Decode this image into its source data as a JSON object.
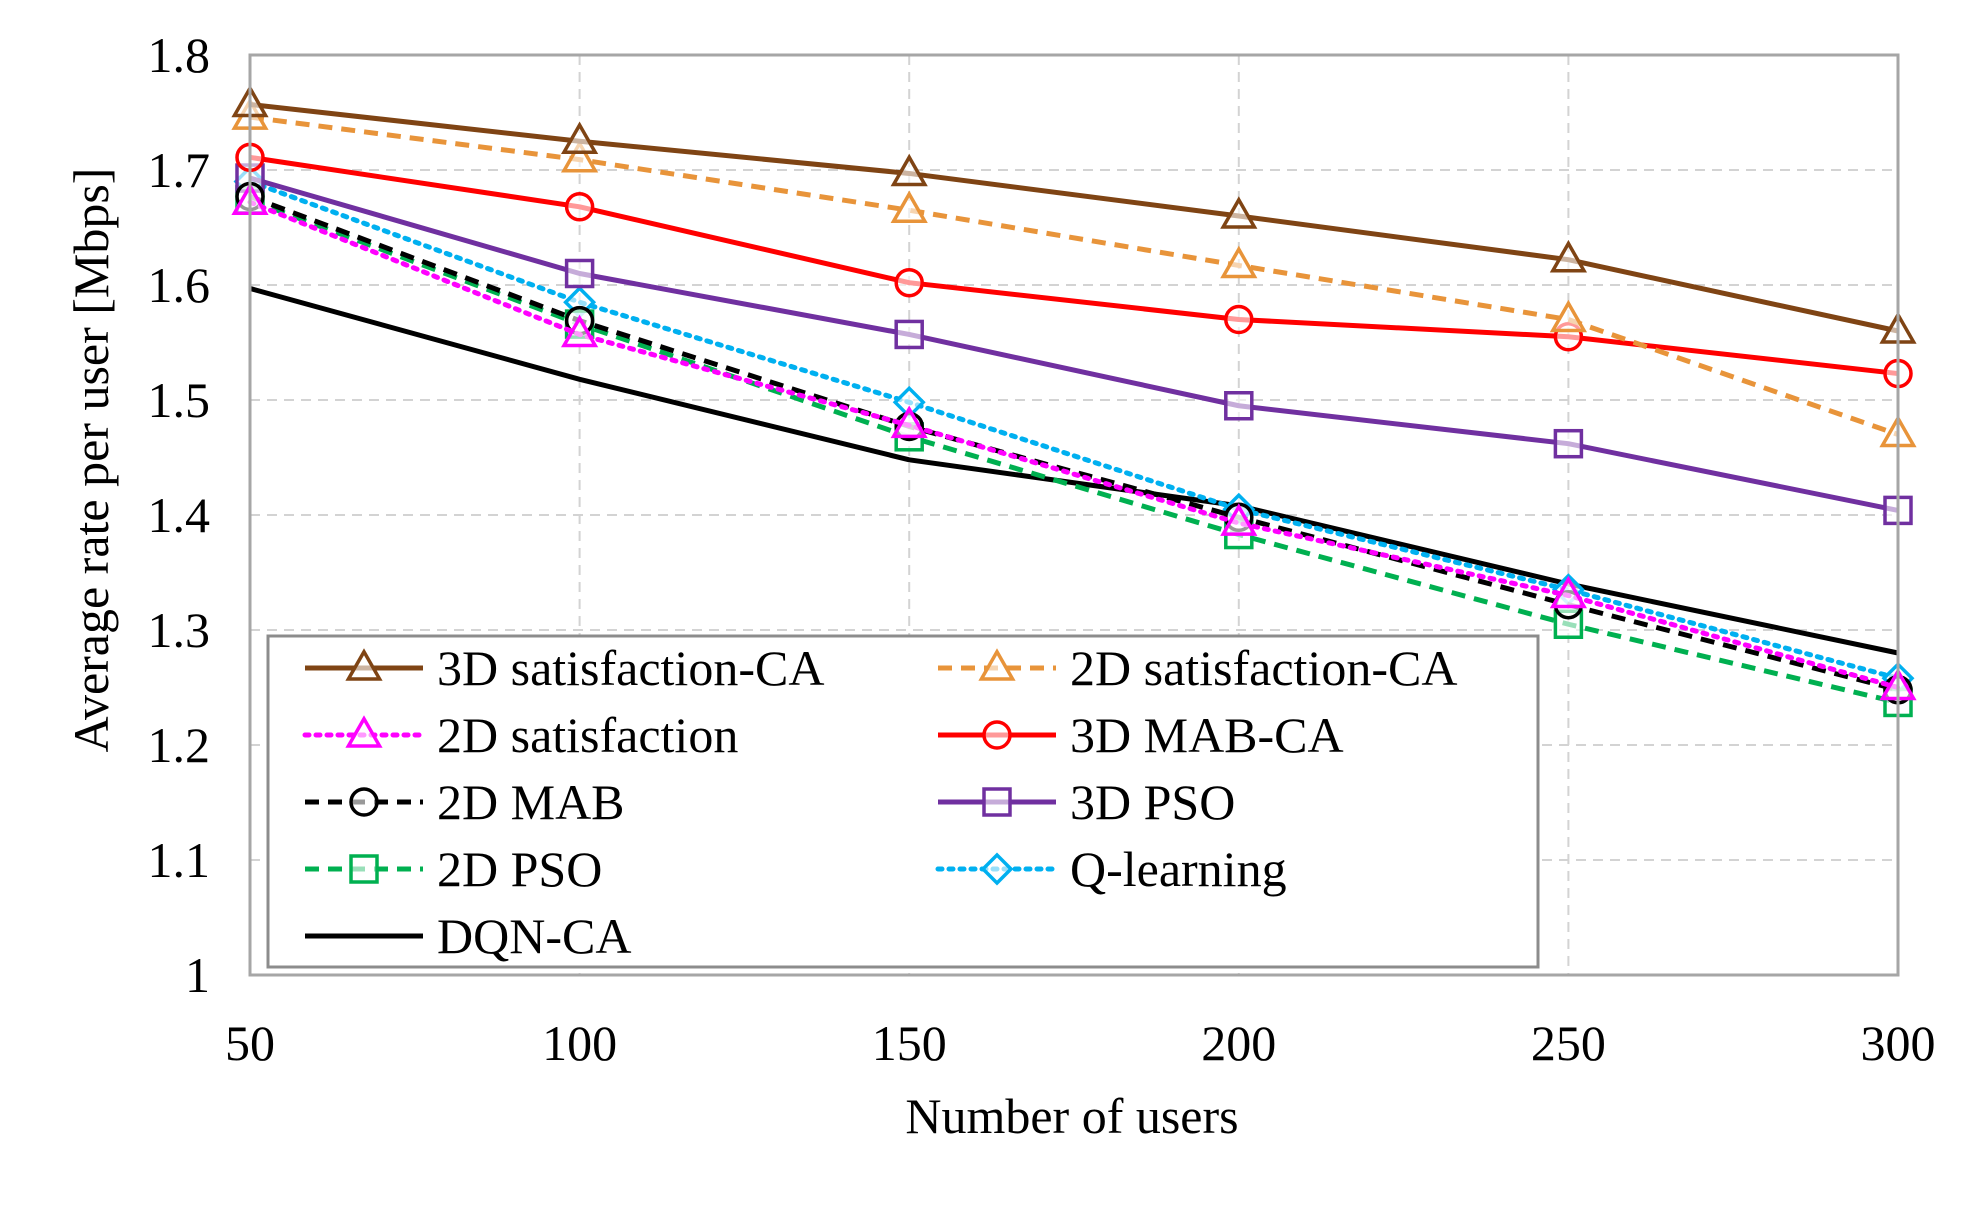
{
  "chart_data": {
    "type": "line",
    "title": "",
    "xlabel": "Number of users",
    "ylabel": "Average rate per user [Mbps]",
    "x": [
      50,
      100,
      150,
      200,
      250,
      300
    ],
    "xticks": [
      "50",
      "100",
      "150",
      "200",
      "250",
      "300"
    ],
    "ylim": [
      1,
      1.8
    ],
    "yticks": [
      "1",
      "1.1",
      "1.2",
      "1.3",
      "1.4",
      "1.5",
      "1.6",
      "1.7",
      "1.8"
    ],
    "grid": true,
    "legend_position": "bottom-left",
    "series": [
      {
        "name": "3D satisfaction-CA",
        "values": [
          1.757,
          1.725,
          1.697,
          1.66,
          1.622,
          1.56
        ],
        "color": "#7f4414",
        "dash": "solid",
        "marker": "triangle"
      },
      {
        "name": "2D satisfaction-CA",
        "values": [
          1.746,
          1.709,
          1.665,
          1.617,
          1.57,
          1.47
        ],
        "color": "#e8943a",
        "dash": "dashed",
        "marker": "triangle"
      },
      {
        "name": "2D satisfaction",
        "values": [
          1.672,
          1.557,
          1.478,
          1.393,
          1.33,
          1.25
        ],
        "color": "#ff00ff",
        "dash": "dotted",
        "marker": "triangle"
      },
      {
        "name": "3D MAB-CA",
        "values": [
          1.711,
          1.668,
          1.602,
          1.57,
          1.555,
          1.523
        ],
        "color": "#ff0000",
        "dash": "solid",
        "marker": "circle"
      },
      {
        "name": "2D MAB",
        "values": [
          1.677,
          1.569,
          1.477,
          1.398,
          1.322,
          1.248
        ],
        "color": "#000000",
        "dash": "dashed",
        "marker": "circle"
      },
      {
        "name": "3D PSO",
        "values": [
          1.693,
          1.61,
          1.557,
          1.495,
          1.462,
          1.404
        ],
        "color": "#7030a0",
        "dash": "solid",
        "marker": "square"
      },
      {
        "name": "2D PSO",
        "values": [
          1.674,
          1.566,
          1.468,
          1.383,
          1.305,
          1.237
        ],
        "color": "#00b050",
        "dash": "dashed",
        "marker": "square"
      },
      {
        "name": "Q-learning",
        "values": [
          1.69,
          1.585,
          1.498,
          1.405,
          1.335,
          1.258
        ],
        "color": "#00b0f0",
        "dash": "dotted",
        "marker": "diamond"
      },
      {
        "name": "DQN-CA",
        "values": [
          1.597,
          1.518,
          1.448,
          1.408,
          1.34,
          1.28
        ],
        "color": "#000000",
        "dash": "solid",
        "marker": "none"
      }
    ]
  }
}
